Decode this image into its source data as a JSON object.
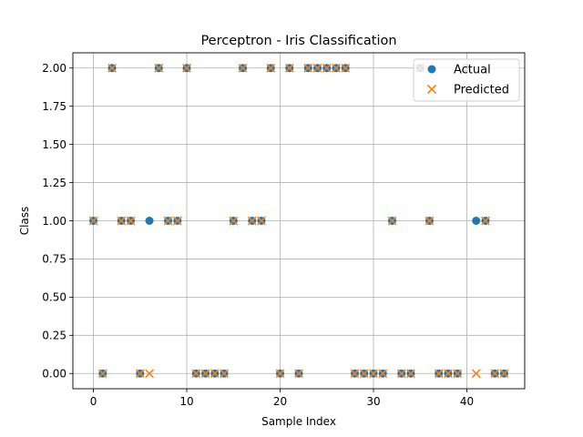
{
  "chart_data": {
    "type": "scatter",
    "title": "Perceptron - Iris Classification",
    "xlabel": "Sample Index",
    "ylabel": "Class",
    "xlim": [
      -2.2,
      46.2
    ],
    "ylim": [
      -0.1,
      2.1
    ],
    "xticks": [
      0,
      10,
      20,
      30,
      40
    ],
    "yticks": [
      0.0,
      0.25,
      0.5,
      0.75,
      1.0,
      1.25,
      1.5,
      1.75,
      2.0
    ],
    "ytick_labels": [
      "0.00",
      "0.25",
      "0.50",
      "0.75",
      "1.00",
      "1.25",
      "1.50",
      "1.75",
      "2.00"
    ],
    "grid": true,
    "legend_position": "top-right",
    "x": [
      0,
      1,
      2,
      3,
      4,
      5,
      6,
      7,
      8,
      9,
      10,
      11,
      12,
      13,
      14,
      15,
      16,
      17,
      18,
      19,
      20,
      21,
      22,
      23,
      24,
      25,
      26,
      27,
      28,
      29,
      30,
      31,
      32,
      33,
      34,
      35,
      36,
      37,
      38,
      39,
      40,
      41,
      42,
      43,
      44
    ],
    "series": [
      {
        "name": "Actual",
        "marker": "circle",
        "color": "#1f77b4",
        "values": [
          1,
          0,
          2,
          1,
          1,
          0,
          1,
          2,
          1,
          1,
          2,
          0,
          0,
          0,
          0,
          1,
          2,
          1,
          1,
          2,
          0,
          2,
          0,
          2,
          2,
          2,
          2,
          2,
          0,
          0,
          0,
          0,
          1,
          0,
          0,
          2,
          1,
          0,
          0,
          0,
          2,
          1,
          1,
          0,
          0
        ]
      },
      {
        "name": "Predicted",
        "marker": "x",
        "color": "#ff7f0e",
        "values": [
          1,
          0,
          2,
          1,
          1,
          0,
          0,
          2,
          1,
          1,
          2,
          0,
          0,
          0,
          0,
          1,
          2,
          1,
          1,
          2,
          0,
          2,
          0,
          2,
          2,
          2,
          2,
          2,
          0,
          0,
          0,
          0,
          1,
          0,
          0,
          2,
          1,
          0,
          0,
          0,
          2,
          0,
          1,
          0,
          0
        ]
      }
    ]
  }
}
